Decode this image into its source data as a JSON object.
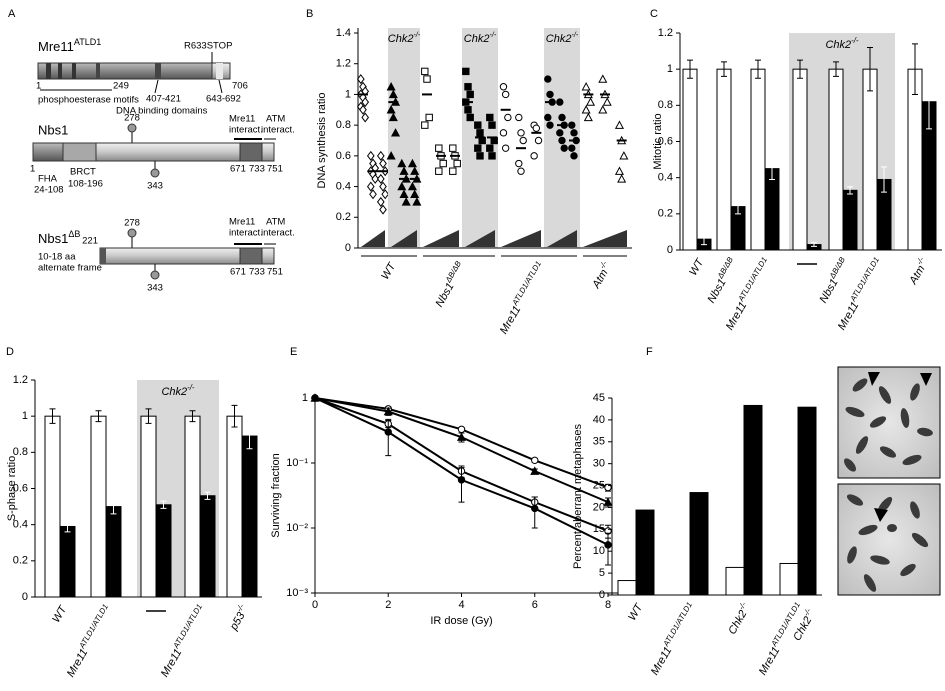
{
  "panels": [
    "A",
    "B",
    "C",
    "D",
    "E",
    "F"
  ],
  "diagram": {
    "mre11": {
      "name": "Mre11",
      "sup": "ATLD1",
      "stop": "R633STOP",
      "start": "1",
      "motif_end": "249",
      "end": "706",
      "motifs": "phosphoesterase motifs",
      "dbd1": "407-421",
      "dbd2": "643-692",
      "dbd": "DNA binding domains"
    },
    "nbs1": {
      "name": "Nbs1",
      "site1": "278",
      "site2": "343",
      "start": "1",
      "fha": "FHA",
      "fha_range": "24-108",
      "brct": "BRCT",
      "brct_range": "108-196",
      "p671": "671",
      "p733": "733",
      "p751": "751",
      "mre11_int": [
        "Mre11",
        "interact."
      ],
      "atm_int": [
        "ATM",
        "interact."
      ]
    },
    "nbs1db": {
      "name": "Nbs1",
      "sup": "ΔB",
      "site1": "278",
      "site2": "343",
      "start": "221",
      "note": [
        "10-18 aa",
        "alternate frame"
      ],
      "p671": "671",
      "p733": "733",
      "p751": "751",
      "mre11_int": [
        "Mre11",
        "interact."
      ],
      "atm_int": [
        "ATM",
        "interact."
      ]
    }
  },
  "chart_data": [
    {
      "type": "dotplot",
      "y_label": "DNA synthesis ratio",
      "ylim": [
        0,
        1.4
      ],
      "yticks": [
        0,
        0.2,
        0.4,
        0.6,
        0.8,
        1,
        1.2,
        1.4
      ],
      "shade_label": {
        "text": "Chk2",
        "sup": "-/-"
      },
      "groups": [
        {
          "label": {
            "text": "WT"
          },
          "halves": [
            {
              "marker": "diamond",
              "filled": false,
              "shaded": false,
              "columns": [
                {
                  "values": [
                    1.1,
                    1.05,
                    1.02,
                    1.0,
                    0.98,
                    0.95,
                    0.92,
                    0.9,
                    0.85
                  ],
                  "mean": 1.0
                },
                {
                  "values": [
                    0.6,
                    0.55,
                    0.52,
                    0.5,
                    0.48,
                    0.45,
                    0.4,
                    0.35
                  ],
                  "mean": 0.5
                },
                {
                  "values": [
                    0.6,
                    0.55,
                    0.5,
                    0.45,
                    0.4,
                    0.35,
                    0.3,
                    0.25
                  ],
                  "mean": 0.5
                }
              ]
            },
            {
              "marker": "triangle",
              "filled": true,
              "shaded": true,
              "columns": [
                {
                  "values": [
                    1.05,
                    1.0,
                    0.95,
                    0.9,
                    0.85,
                    0.75,
                    0.6
                  ],
                  "mean": 0.95
                },
                {
                  "values": [
                    0.55,
                    0.5,
                    0.45,
                    0.4,
                    0.35,
                    0.3
                  ],
                  "mean": 0.45
                },
                {
                  "values": [
                    0.55,
                    0.5,
                    0.45,
                    0.4,
                    0.35,
                    0.3
                  ],
                  "mean": 0.45
                }
              ]
            }
          ]
        },
        {
          "label": {
            "text": "Nbs1",
            "sup": "ΔB/ΔB"
          },
          "halves": [
            {
              "marker": "square",
              "filled": false,
              "shaded": false,
              "columns": [
                {
                  "values": [
                    1.15,
                    1.1,
                    0.85,
                    0.8
                  ],
                  "mean": 1.0
                },
                {
                  "values": [
                    0.65,
                    0.6,
                    0.55,
                    0.5
                  ],
                  "mean": 0.6
                },
                {
                  "values": [
                    0.65,
                    0.6,
                    0.55,
                    0.5
                  ],
                  "mean": 0.6
                }
              ]
            },
            {
              "marker": "square",
              "filled": true,
              "shaded": true,
              "columns": [
                {
                  "values": [
                    1.15,
                    1.05,
                    1.0,
                    0.95,
                    0.9,
                    0.85
                  ],
                  "mean": 0.95
                },
                {
                  "values": [
                    0.8,
                    0.75,
                    0.7,
                    0.65,
                    0.6
                  ],
                  "mean": 0.72
                },
                {
                  "values": [
                    0.85,
                    0.8,
                    0.7,
                    0.65,
                    0.6
                  ],
                  "mean": 0.72
                }
              ]
            }
          ]
        },
        {
          "label": {
            "text": "Mre11",
            "sup": "ATLD1/ATLD1"
          },
          "halves": [
            {
              "marker": "circle",
              "filled": false,
              "shaded": false,
              "columns": [
                {
                  "values": [
                    1.05,
                    1.0,
                    0.85,
                    0.75,
                    0.65
                  ],
                  "mean": 0.9
                },
                {
                  "values": [
                    0.85,
                    0.75,
                    0.7,
                    0.55,
                    0.5
                  ],
                  "mean": 0.65
                },
                {
                  "values": [
                    0.8,
                    0.78,
                    0.7,
                    0.6
                  ],
                  "mean": 0.75
                }
              ]
            },
            {
              "marker": "circle",
              "filled": true,
              "shaded": true,
              "columns": [
                {
                  "values": [
                    1.1,
                    1.0,
                    0.95,
                    0.85,
                    0.8
                  ],
                  "mean": 0.95
                },
                {
                  "values": [
                    0.95,
                    0.85,
                    0.8,
                    0.75,
                    0.7,
                    0.65
                  ],
                  "mean": 0.8
                },
                {
                  "values": [
                    0.8,
                    0.75,
                    0.7,
                    0.65,
                    0.6
                  ],
                  "mean": 0.7
                }
              ]
            }
          ]
        },
        {
          "label": {
            "text": "Atm",
            "sup": "-/-"
          },
          "halves": [
            {
              "marker": "triangle",
              "filled": false,
              "shaded": false,
              "columns": [
                {
                  "values": [
                    1.05,
                    1.0,
                    0.95,
                    0.9,
                    0.85
                  ],
                  "mean": 1.0
                },
                {
                  "values": [
                    1.1,
                    1.0,
                    0.95,
                    0.9
                  ],
                  "mean": 1.0
                },
                {
                  "values": [
                    0.8,
                    0.7,
                    0.6,
                    0.5,
                    0.45
                  ],
                  "mean": 0.7
                }
              ]
            }
          ]
        }
      ]
    },
    {
      "type": "bar",
      "y_label": "Mitotic ratio",
      "ylim": [
        0,
        1.2
      ],
      "yticks": [
        0,
        0.2,
        0.4,
        0.6,
        0.8,
        1,
        1.2
      ],
      "categories": [
        {
          "text": "WT"
        },
        {
          "text": "Nbs1",
          "sup": "ΔB/ΔB"
        },
        {
          "text": "Mre11",
          "sup": "ATLD1/ATLD1"
        },
        null,
        {
          "text": "Nbs1",
          "sup": "ΔB/ΔB"
        },
        {
          "text": "Mre11",
          "sup": "ATLD1/ATLD1"
        },
        {
          "text": "Atm",
          "sup": "-/-"
        }
      ],
      "shaded": [
        false,
        false,
        false,
        true,
        true,
        true,
        false
      ],
      "shade_label": {
        "text": "Chk2",
        "sup": "-/-"
      },
      "series": [
        {
          "color": "#ffffff",
          "values": [
            1,
            1,
            1,
            1,
            1,
            1,
            1
          ],
          "errors": [
            0.05,
            0.04,
            0.05,
            0.05,
            0.04,
            0.12,
            0.14
          ]
        },
        {
          "color": "#000000",
          "values": [
            0.06,
            0.24,
            0.45,
            0.03,
            0.33,
            0.39,
            0.82
          ],
          "errors": [
            0.03,
            0.04,
            0.06,
            0.01,
            0.02,
            0.07,
            0.15
          ]
        }
      ]
    },
    {
      "type": "bar",
      "y_label": "S-phase ratio",
      "ylim": [
        0,
        1.2
      ],
      "yticks": [
        0,
        0.2,
        0.4,
        0.6,
        0.8,
        1,
        1.2
      ],
      "categories": [
        {
          "text": "WT"
        },
        {
          "text": "Mre11",
          "sup": "ATLD1/ATLD1"
        },
        null,
        {
          "text": "Mre11",
          "sup": "ATLD1/ATLD1"
        },
        {
          "text": "p53",
          "sup": "-/-"
        }
      ],
      "shaded": [
        false,
        false,
        true,
        true,
        false
      ],
      "shade_label": {
        "text": "Chk2",
        "sup": "-/-"
      },
      "series": [
        {
          "color": "#ffffff",
          "values": [
            1,
            1,
            1,
            1,
            1
          ],
          "errors": [
            0.04,
            0.03,
            0.04,
            0.03,
            0.06
          ]
        },
        {
          "color": "#000000",
          "values": [
            0.39,
            0.5,
            0.51,
            0.56,
            0.89
          ],
          "errors": [
            0.03,
            0.04,
            0.02,
            0.02,
            0.07
          ]
        }
      ]
    },
    {
      "type": "line",
      "x_label": "IR dose (Gy)",
      "y_label": "Surviving fraction",
      "log_y": true,
      "x": [
        0,
        2,
        4,
        6,
        8
      ],
      "xlim": [
        0,
        8
      ],
      "xticks": [
        0,
        2,
        4,
        6,
        8
      ],
      "ylim": [
        0.001,
        1
      ],
      "yticks": [
        {
          "value": 0.001,
          "label": "10⁻³"
        },
        {
          "value": 0.01,
          "label": "10⁻²"
        },
        {
          "value": 0.1,
          "label": "10⁻¹"
        },
        1
      ],
      "series": [
        {
          "marker": "circle",
          "filled": false,
          "values": [
            1,
            0.68,
            0.33,
            0.11,
            0.042
          ],
          "errors": [
            0,
            0.05,
            0.02,
            0.008,
            0.005
          ]
        },
        {
          "marker": "triangle",
          "filled": true,
          "values": [
            1,
            0.62,
            0.25,
            0.075,
            0.025
          ],
          "errors": [
            0,
            0.08,
            0.04,
            0.006,
            0.004
          ]
        },
        {
          "marker": "circle",
          "filled": false,
          "values": [
            1,
            0.4,
            0.075,
            0.025,
            0.009
          ],
          "errors": [
            0,
            0.05,
            0.015,
            0.005,
            0.002
          ]
        },
        {
          "marker": "circle",
          "filled": true,
          "values": [
            1,
            0.3,
            0.055,
            0.02,
            0.0055
          ],
          "errors": [
            0,
            0.17,
            0.03,
            0.01,
            0.0028
          ]
        }
      ]
    },
    {
      "type": "bar",
      "y_label": "Percent aberrant metaphases",
      "ylim": [
        0,
        45
      ],
      "yticks": [
        0,
        5,
        10,
        15,
        20,
        25,
        30,
        35,
        40,
        45
      ],
      "categories": [
        {
          "text": "WT"
        },
        {
          "text": "Mre11",
          "sup": "ATLD1/ATLD1"
        },
        {
          "text": "Chk2",
          "sup": "-/-"
        },
        {
          "text": "Mre11",
          "sup": "ATLD1/ATLD1",
          "line2": "Chk2",
          "line2_sup": "-/-"
        }
      ],
      "series": [
        {
          "color": "#ffffff",
          "values": [
            3.3,
            0,
            6.3,
            7.2
          ]
        },
        {
          "color": "#000000",
          "values": [
            19.4,
            23.4,
            43.3,
            42.9
          ]
        }
      ]
    }
  ]
}
